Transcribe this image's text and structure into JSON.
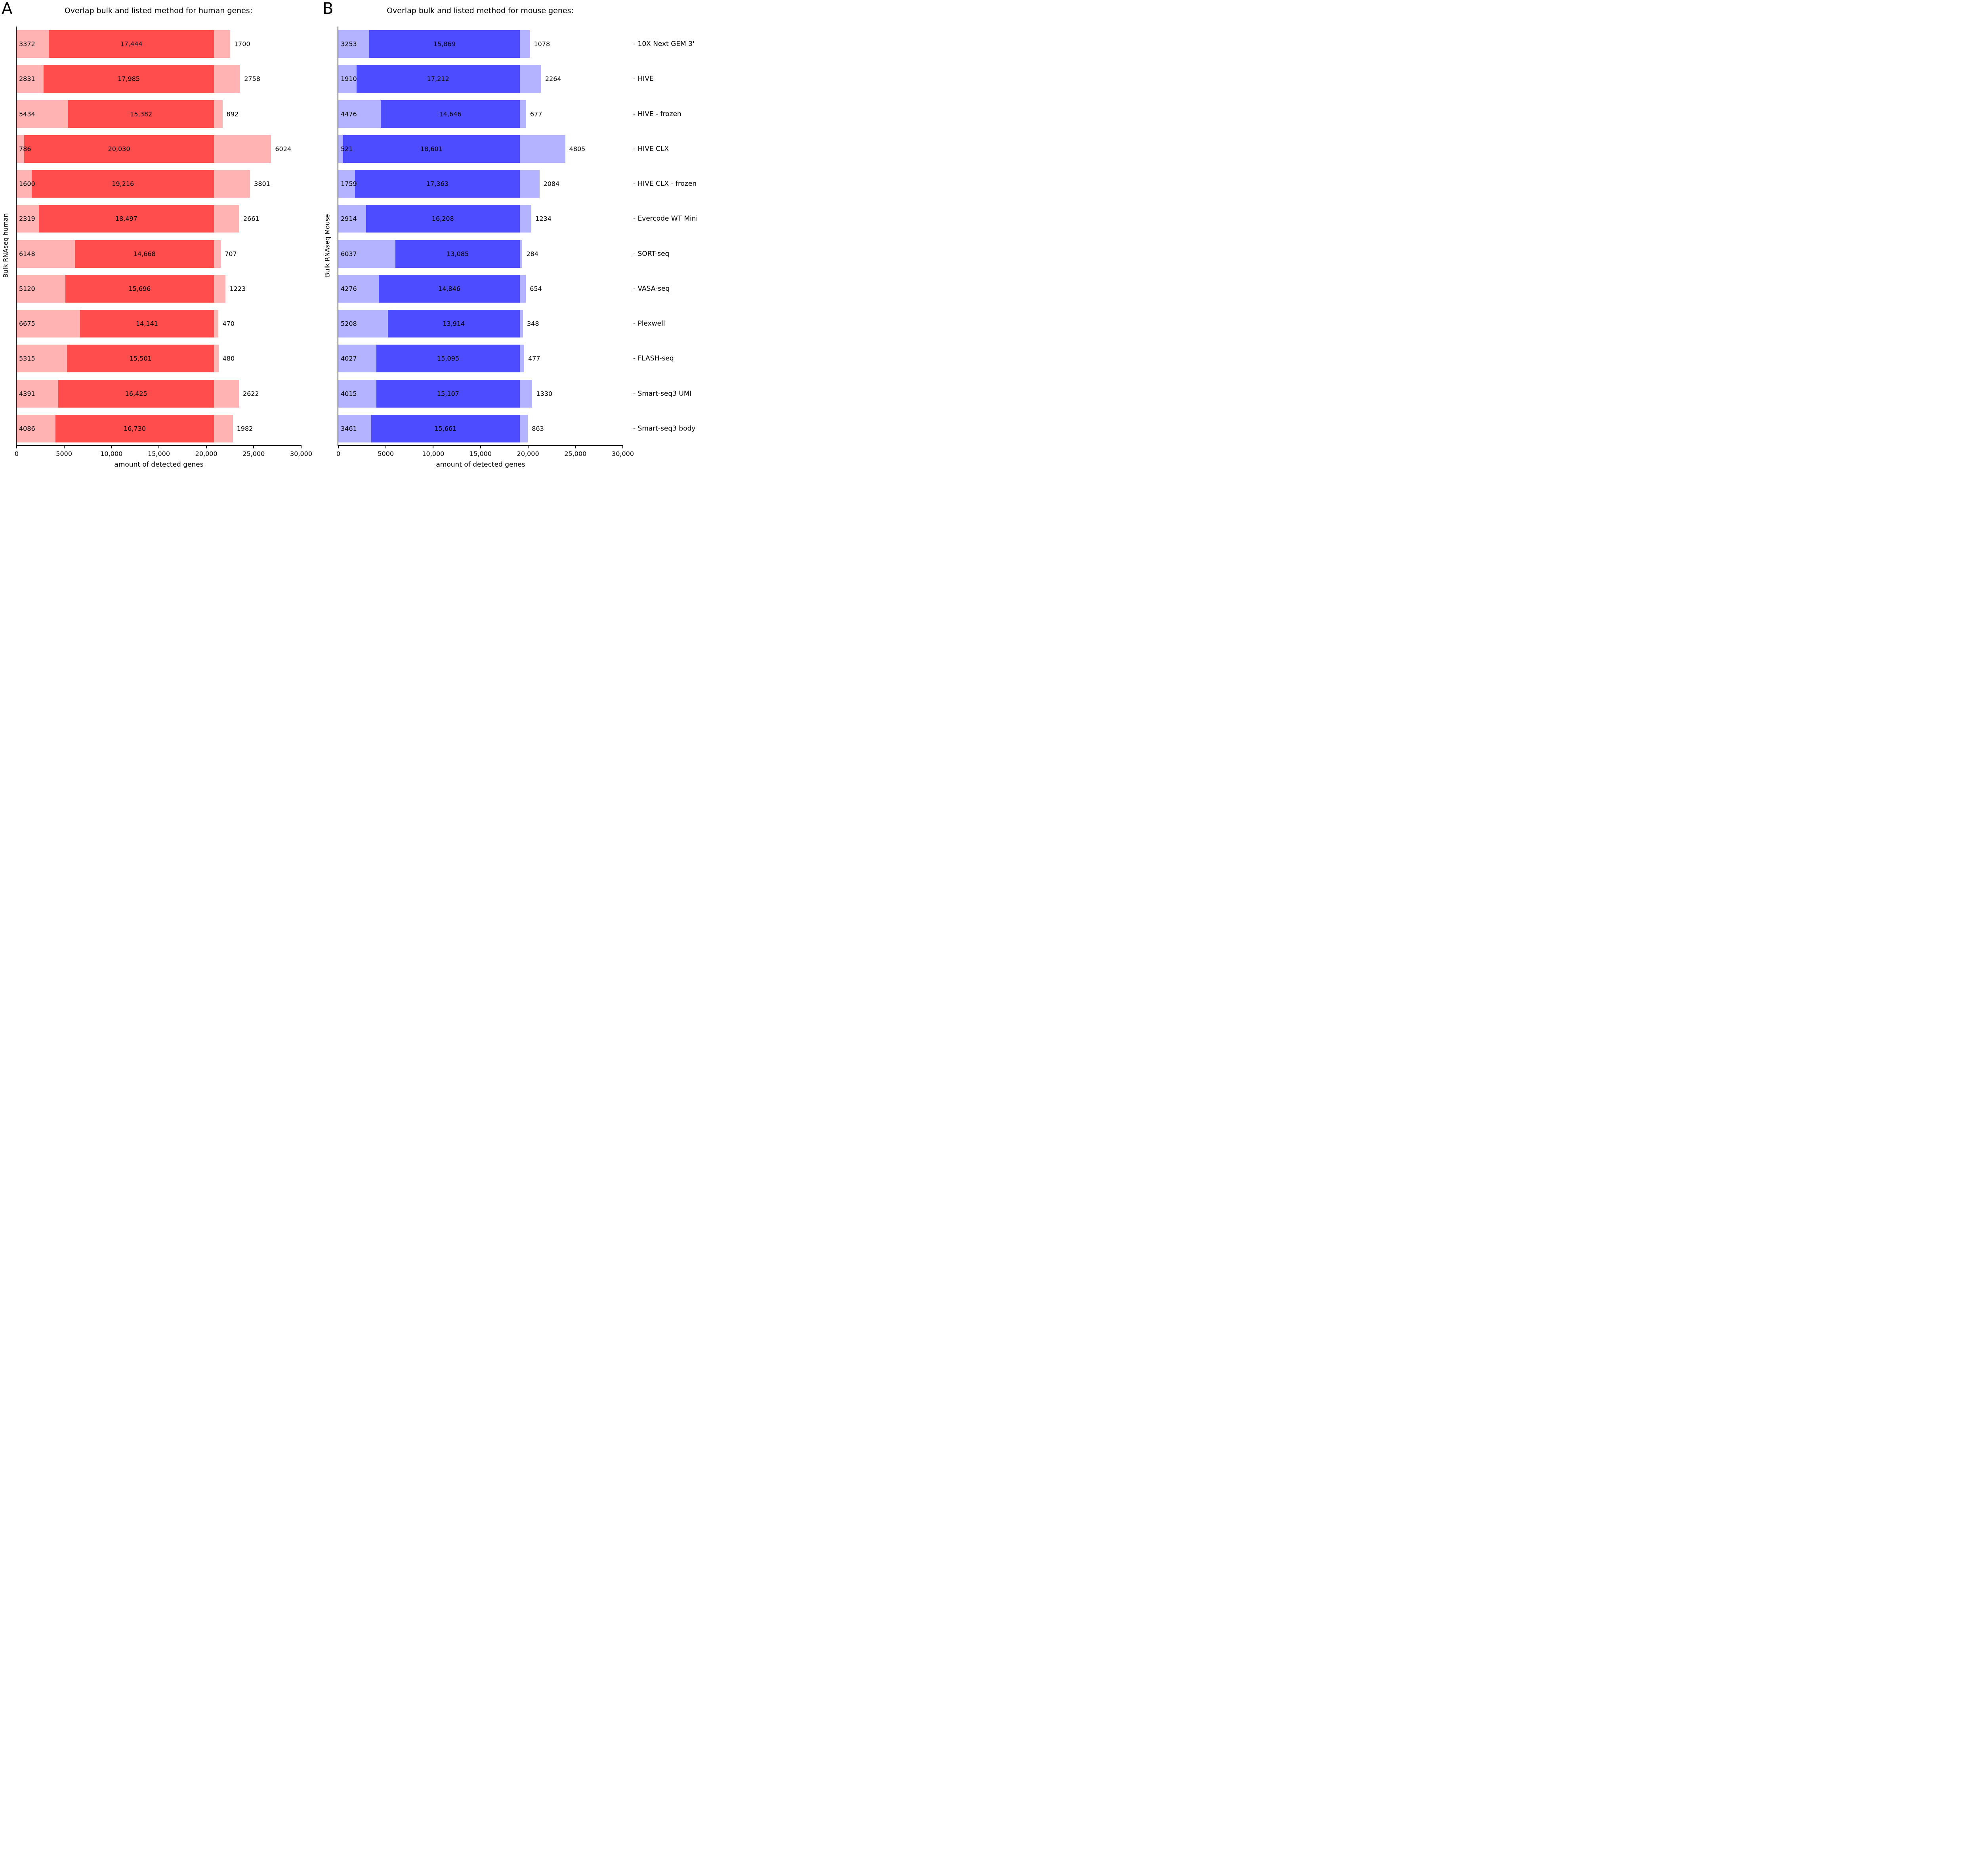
{
  "figure": {
    "panels": [
      {
        "letter": "A",
        "title": "Overlap bulk and listed method for human genes:",
        "ylabel": "Bulk RNAseq human",
        "xlabel": "amount of detected genes",
        "colors": {
          "overlap": "#ff4d4d",
          "light": "#ffb3b3"
        }
      },
      {
        "letter": "B",
        "title": "Overlap bulk and listed method for mouse genes:",
        "ylabel": "Bulk RNAseq Mouse",
        "xlabel": "amount of detected genes",
        "colors": {
          "overlap": "#4d4dff",
          "light": "#b3b3ff"
        },
        "tick_prefix": "-"
      }
    ]
  },
  "chart_data": [
    {
      "type": "bar",
      "orientation": "horizontal",
      "stacked": true,
      "title": "Overlap bulk and listed method for human genes:",
      "xlabel": "amount of detected genes",
      "ylabel": "Bulk RNAseq human",
      "xlim": [
        0,
        30000
      ],
      "xticks": [
        "0",
        "5000",
        "10,000",
        "15,000",
        "20,000",
        "25,000",
        "30,000"
      ],
      "grid": false,
      "legend": null,
      "category_labels_shown": false,
      "categories": [
        "10X Next GEM 3'",
        "HIVE",
        "HIVE - frozen",
        "HIVE CLX",
        "HIVE CLX - frozen",
        "Evercode WT Mini",
        "SORT-seq",
        "VASA-seq",
        "Plexwell",
        "FLASH-seq",
        "Smart-seq3 UMI",
        "Smart-seq3 body"
      ],
      "series": [
        {
          "name": "bulk only",
          "color": "#ffb3b3",
          "values": [
            3372,
            2831,
            5434,
            786,
            1600,
            2319,
            6148,
            5120,
            6675,
            5315,
            4391,
            4086
          ]
        },
        {
          "name": "overlap",
          "color": "#ff4d4d",
          "values": [
            17444,
            17985,
            15382,
            20030,
            19216,
            18497,
            14668,
            15696,
            14141,
            15501,
            16425,
            16730
          ]
        },
        {
          "name": "method only",
          "color": "#ffb3b3",
          "values": [
            1700,
            2758,
            892,
            6024,
            3801,
            2661,
            707,
            1223,
            470,
            480,
            2622,
            1982
          ]
        }
      ]
    },
    {
      "type": "bar",
      "orientation": "horizontal",
      "stacked": true,
      "title": "Overlap bulk and listed method for mouse genes:",
      "xlabel": "amount of detected genes",
      "ylabel": "Bulk RNAseq Mouse",
      "xlim": [
        0,
        30000
      ],
      "xticks": [
        "0",
        "5000",
        "10,000",
        "15,000",
        "20,000",
        "25,000",
        "30,000"
      ],
      "grid": false,
      "legend": null,
      "category_labels_shown": true,
      "category_labels_position": "right",
      "categories": [
        "10X Next GEM 3'",
        "HIVE",
        "HIVE - frozen",
        "HIVE CLX",
        "HIVE CLX - frozen",
        "Evercode WT Mini",
        "SORT-seq",
        "VASA-seq",
        "Plexwell",
        "FLASH-seq",
        "Smart-seq3 UMI",
        "Smart-seq3 body"
      ],
      "series": [
        {
          "name": "bulk only",
          "color": "#b3b3ff",
          "values": [
            3253,
            1910,
            4476,
            521,
            1759,
            2914,
            6037,
            4276,
            5208,
            4027,
            4015,
            3461
          ]
        },
        {
          "name": "overlap",
          "color": "#4d4dff",
          "values": [
            15869,
            17212,
            14646,
            18601,
            17363,
            16208,
            13085,
            14846,
            13914,
            15095,
            15107,
            15661
          ]
        },
        {
          "name": "method only",
          "color": "#b3b3ff",
          "values": [
            1078,
            2264,
            677,
            4805,
            2084,
            1234,
            284,
            654,
            348,
            477,
            1330,
            863
          ]
        }
      ]
    }
  ]
}
